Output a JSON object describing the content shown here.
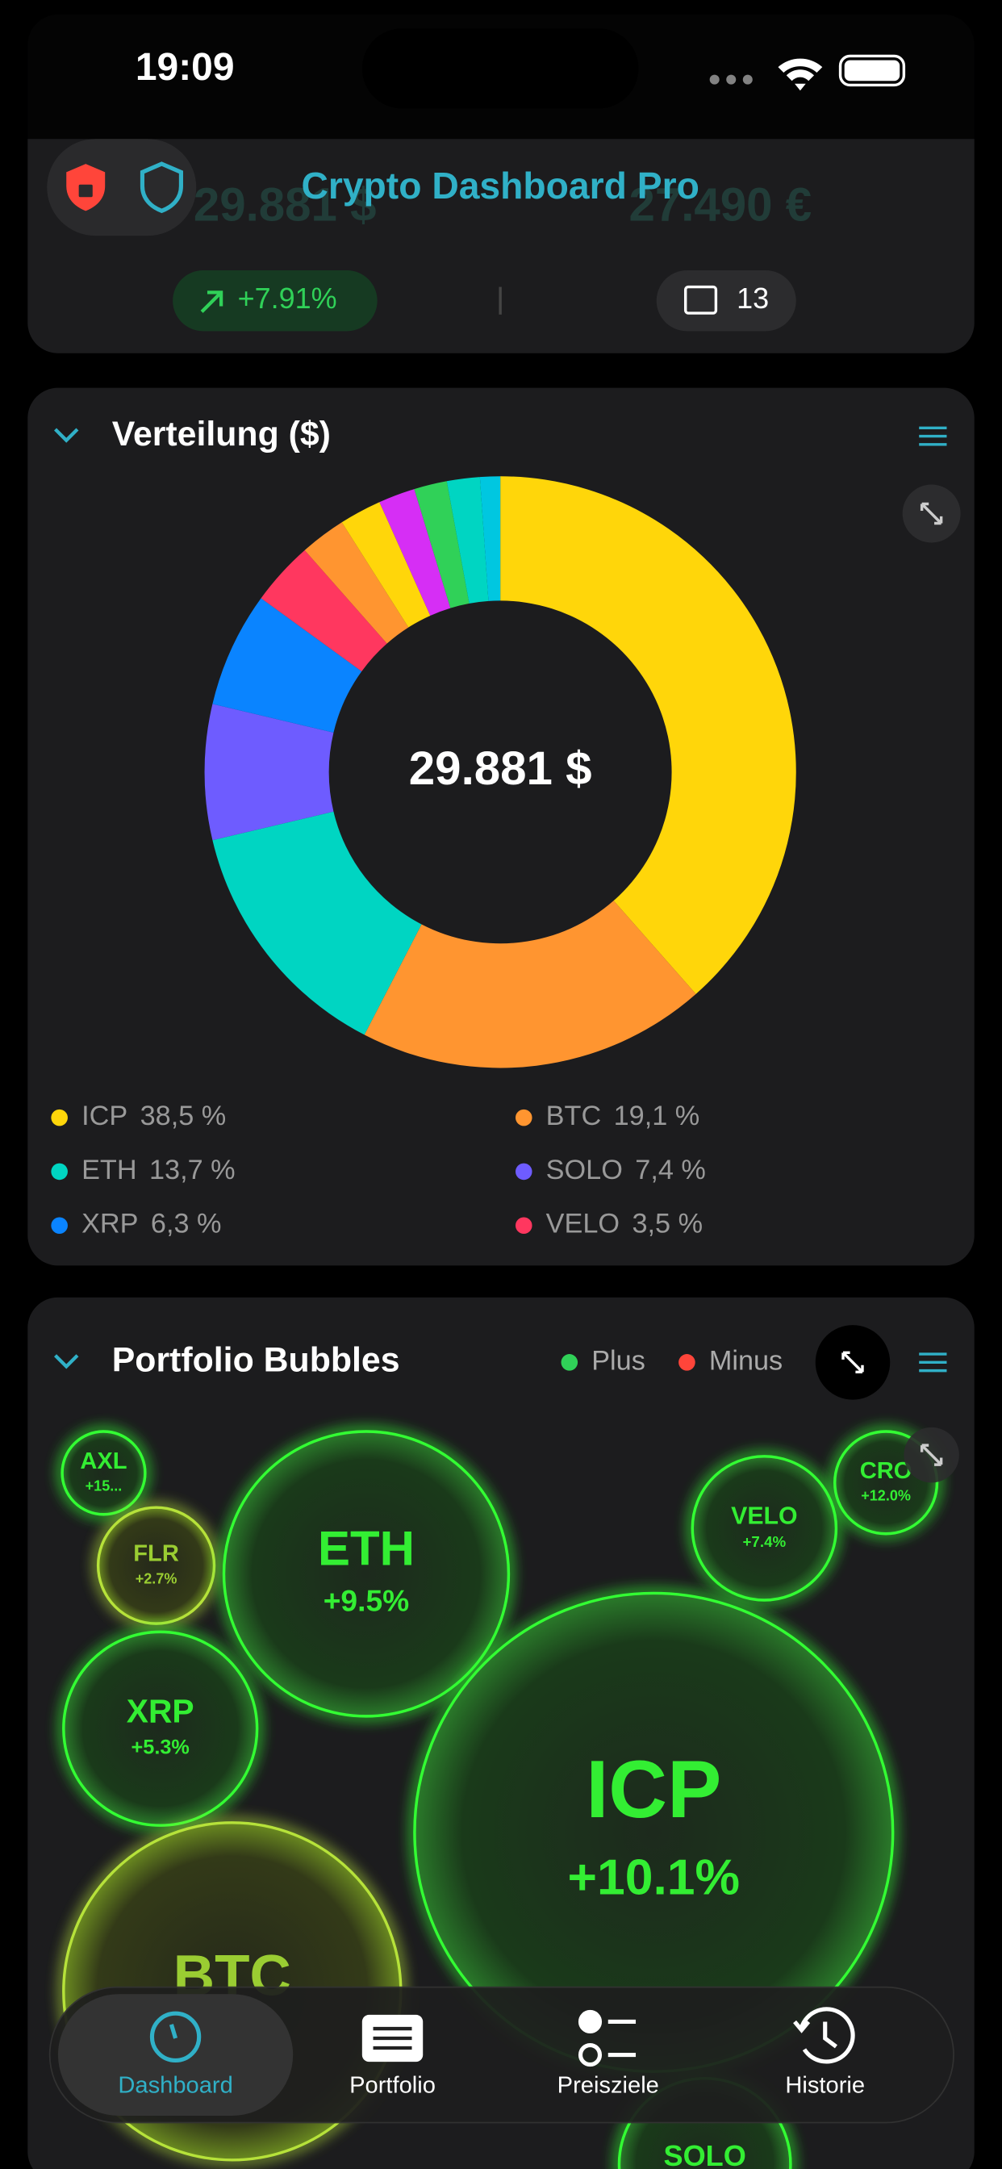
{
  "status_bar": {
    "time": "19:09"
  },
  "header": {
    "title": "Crypto Dashboard Pro"
  },
  "summary": {
    "value_usd": "29.881 $",
    "value_eur": "27.490 €",
    "change": "+7.91%",
    "count": "13"
  },
  "chart_data": {
    "type": "pie",
    "title": "Verteilung ($)",
    "center_label": "29.881 $",
    "categories": [
      "ICP",
      "BTC",
      "ETH",
      "SOLO",
      "XRP",
      "VELO",
      null,
      null,
      null,
      null,
      null,
      null
    ],
    "values": [
      38.5,
      19.1,
      13.7,
      7.4,
      6.3,
      3.5,
      2.5,
      2.3,
      2.0,
      1.8,
      1.8,
      1.1
    ],
    "value_labels": [
      "38,5 %",
      "19,1 %",
      "13,7 %",
      "7,4 %",
      "6,3 %",
      "3,5 %",
      null,
      null,
      null,
      null,
      null,
      null
    ],
    "colors": [
      "#ffd60a",
      "#ff9530",
      "#00d5c2",
      "#6e5cff",
      "#0a84ff",
      "#ff375f",
      "#ff9530",
      "#ffd60a",
      "#d62ef5",
      "#30d158",
      "#00d5c2",
      "#00c7e0"
    ]
  },
  "bubbles": {
    "title": "Portfolio Bubbles",
    "legend": [
      "Plus",
      "Minus"
    ],
    "items": [
      {
        "label": "AXL",
        "change": "+15..."
      },
      {
        "label": "FLR",
        "change": "+2.7%"
      },
      {
        "label": "ETH",
        "change": "+9.5%"
      },
      {
        "label": "XRP",
        "change": "+5.3%"
      },
      {
        "label": "VELO",
        "change": "+7.4%"
      },
      {
        "label": "CRO",
        "change": "+12.0%"
      },
      {
        "label": "ICP",
        "change": "+10.1%"
      },
      {
        "label": "BTC"
      },
      {
        "label": "SOLO"
      }
    ]
  },
  "tab_bar": {
    "tabs": [
      "Dashboard",
      "Portfolio",
      "Preisziele",
      "Historie"
    ]
  }
}
